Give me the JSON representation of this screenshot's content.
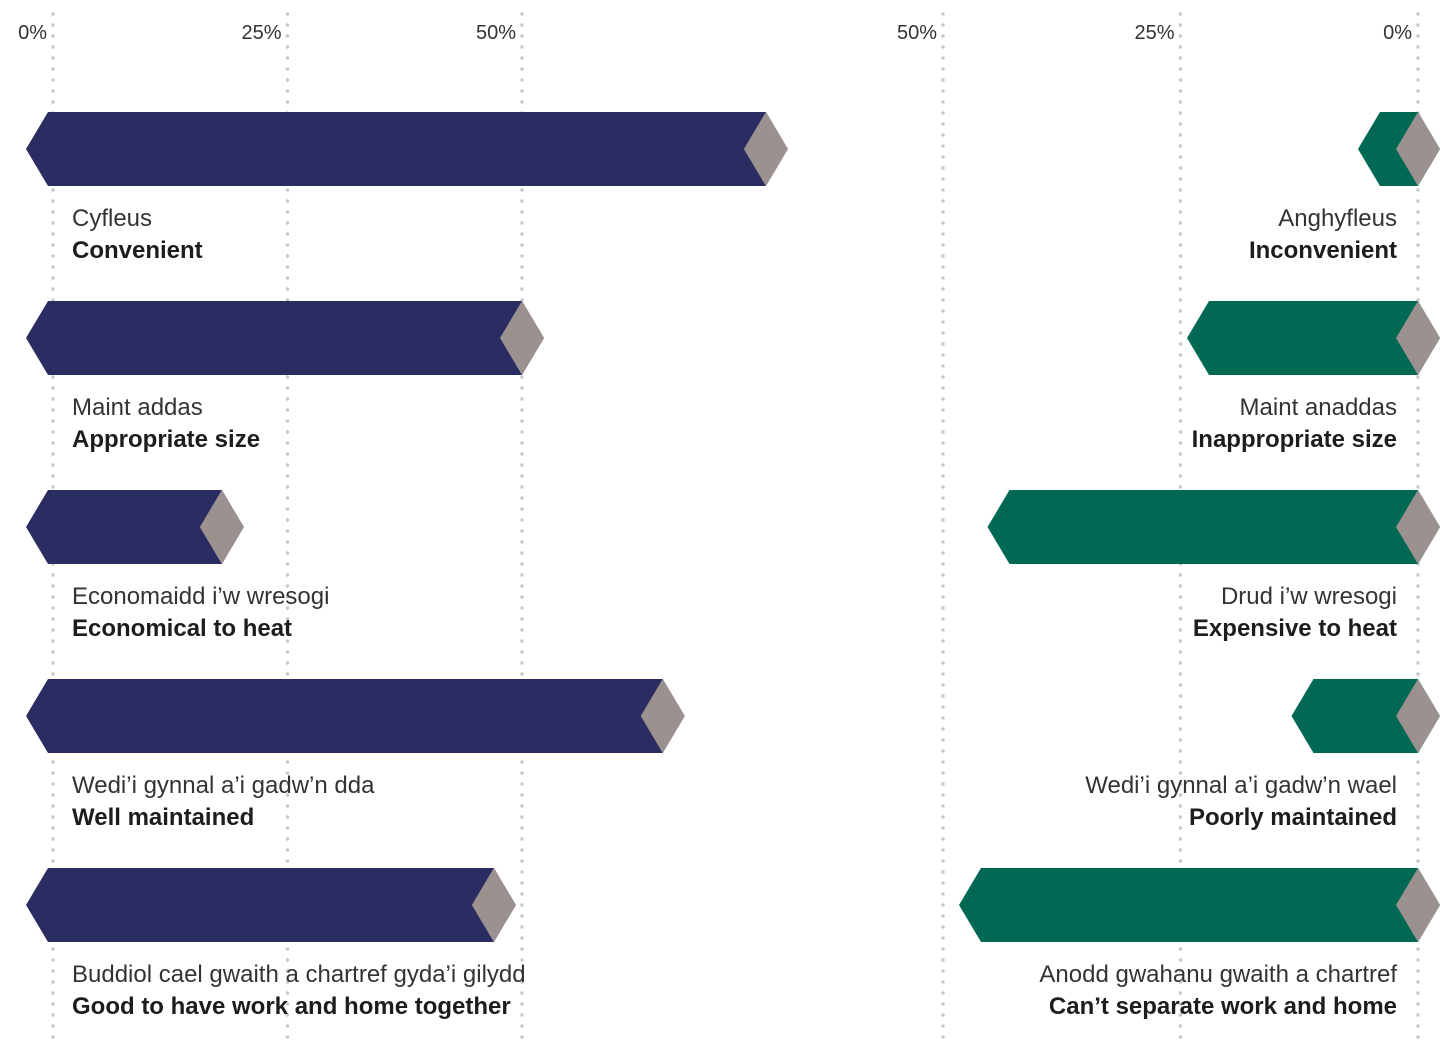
{
  "chart_data": {
    "type": "bar",
    "layout": "diverging-butterfly",
    "ticks_left": [
      "0%",
      "25%",
      "50%"
    ],
    "ticks_right": [
      "50%",
      "25%",
      "0%"
    ],
    "xlim": [
      0,
      0.5
    ],
    "grid": true,
    "colors": {
      "positive": "#2b2d62",
      "negative": "#006853",
      "cap": "#9b918f",
      "grid": "#c8c8c8"
    },
    "categories": [
      {
        "welsh_positive": "Cyfleus",
        "positive": "Convenient",
        "positive_value": 0.76,
        "welsh_negative": "Anghyfleus",
        "negative": "Inconvenient",
        "negative_value": 0.04
      },
      {
        "welsh_positive": "Maint addas",
        "positive": "Appropriate size",
        "positive_value": 0.5,
        "welsh_negative": "Maint anaddas",
        "negative": "Inappropriate size",
        "negative_value": 0.22
      },
      {
        "welsh_positive": "Economaidd i’w wresogi",
        "positive": "Economical to heat",
        "positive_value": 0.18,
        "welsh_negative": "Drud i’w wresogi",
        "negative": "Expensive to heat",
        "negative_value": 0.43
      },
      {
        "welsh_positive": "Wedi’i gynnal a’i gadw’n dda",
        "positive": "Well maintained",
        "positive_value": 0.65,
        "welsh_negative": "Wedi’i gynnal a’i gadw’n wael",
        "negative": "Poorly maintained",
        "negative_value": 0.11
      },
      {
        "welsh_positive": "Buddiol cael gwaith a chartref gyda’i gilydd",
        "positive": "Good to have work and home together",
        "positive_value": 0.47,
        "welsh_negative": "Anodd gwahanu gwaith a chartref",
        "negative": "Can’t separate work and home",
        "negative_value": 0.46
      }
    ]
  }
}
